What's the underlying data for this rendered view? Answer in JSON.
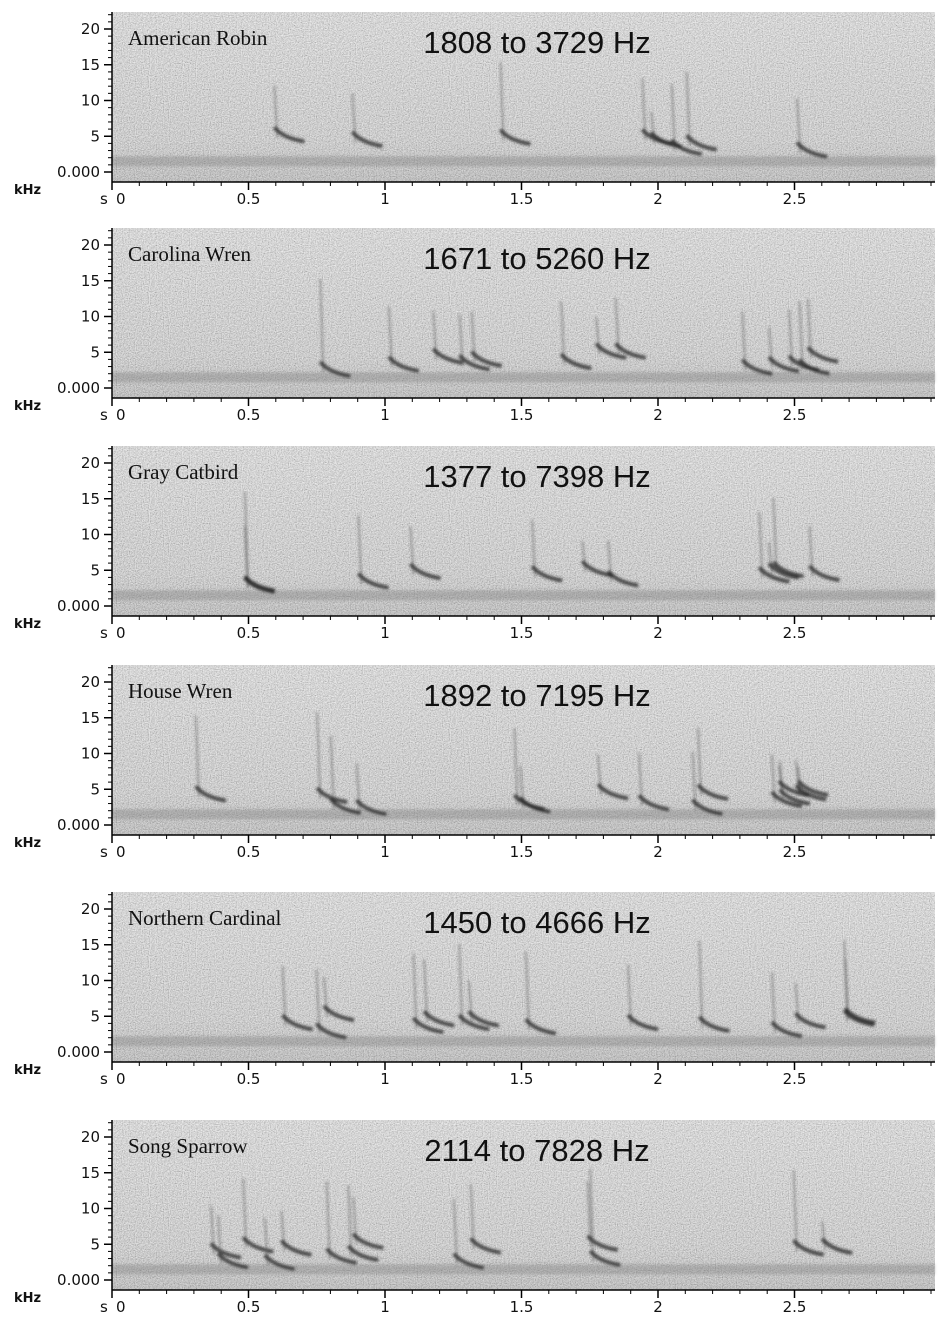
{
  "panels": [
    {
      "species": "American Robin",
      "range": "1808 to 3729 Hz"
    },
    {
      "species": "Carolina Wren",
      "range": "1671 to 5260 Hz"
    },
    {
      "species": "Gray Catbird",
      "range": "1377 to 7398 Hz"
    },
    {
      "species": "House Wren",
      "range": "1892 to 7195 Hz"
    },
    {
      "species": "Northern Cardinal",
      "range": "1450 to 4666 Hz"
    },
    {
      "species": "Song Sparrow",
      "range": "2114 to 7828 Hz"
    }
  ],
  "axes": {
    "y_unit": "kHz",
    "x_unit": "s",
    "yticks": [
      {
        "value": 0,
        "label": "0.000"
      },
      5,
      10,
      15,
      20
    ],
    "xticks": [
      0,
      0.5,
      1,
      1.5,
      2,
      2.5
    ]
  }
}
